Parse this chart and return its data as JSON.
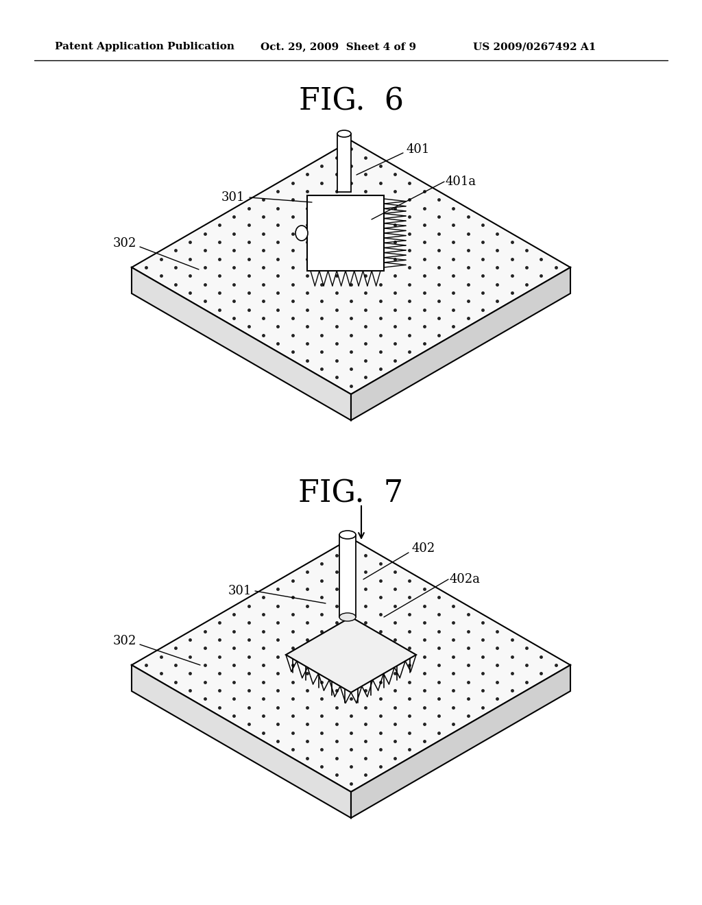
{
  "background_color": "#ffffff",
  "header_left": "Patent Application Publication",
  "header_center": "Oct. 29, 2009  Sheet 4 of 9",
  "header_right": "US 2009/0267492 A1",
  "fig6_title": "FIG.  6",
  "fig7_title": "FIG.  7"
}
